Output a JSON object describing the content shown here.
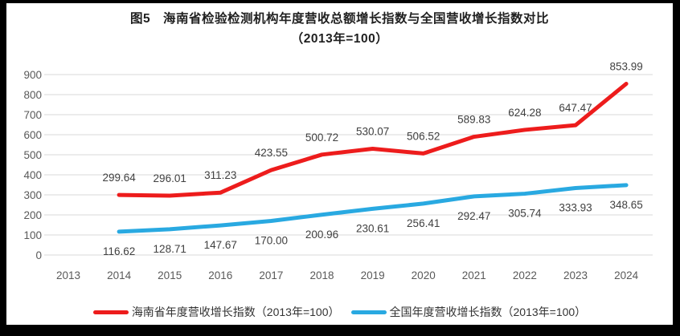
{
  "window": {
    "frame_color": "#000000",
    "background": "#ffffff"
  },
  "title": {
    "line1": "图5　海南省检验检测机构年度营收总额增长指数与全国营收增长指数对比",
    "line2": "（2013年=100）"
  },
  "chart_data": {
    "type": "line",
    "categories": [
      "2013",
      "2014",
      "2015",
      "2016",
      "2017",
      "2018",
      "2019",
      "2020",
      "2021",
      "2022",
      "2023",
      "2024"
    ],
    "yticks": [
      0,
      100,
      200,
      300,
      400,
      500,
      600,
      700,
      800,
      900
    ],
    "ylim": [
      0,
      900
    ],
    "grid": "horizontal",
    "legend_position": "bottom",
    "series": [
      {
        "id": "hainan",
        "legend_label": "海南省年度营收增长指数（2013年=100）",
        "color": "#ed1c1c",
        "label_position": "above",
        "values": [
          null,
          299.64,
          296.01,
          311.23,
          423.55,
          500.72,
          530.07,
          506.52,
          589.83,
          624.28,
          647.47,
          853.99
        ],
        "labels": [
          "",
          "299.64",
          "296.01",
          "311.23",
          "423.55",
          "500.72",
          "530.07",
          "506.52",
          "589.83",
          "624.28",
          "647.47",
          "853.99"
        ]
      },
      {
        "id": "national",
        "legend_label": "全国年度营收增长指数（2013年=100）",
        "color": "#29a9e1",
        "label_position": "below",
        "values": [
          null,
          116.62,
          128.71,
          147.67,
          170.0,
          200.96,
          230.61,
          256.41,
          292.47,
          305.74,
          333.93,
          348.65
        ],
        "labels": [
          "",
          "116.62",
          "128.71",
          "147.67",
          "170.00",
          "200.96",
          "230.61",
          "256.41",
          "292.47",
          "305.74",
          "333.93",
          "348.65"
        ]
      }
    ],
    "colors": {
      "grid": "#d9d9d9",
      "axis_text": "#595959",
      "label_text": "#404040"
    }
  }
}
